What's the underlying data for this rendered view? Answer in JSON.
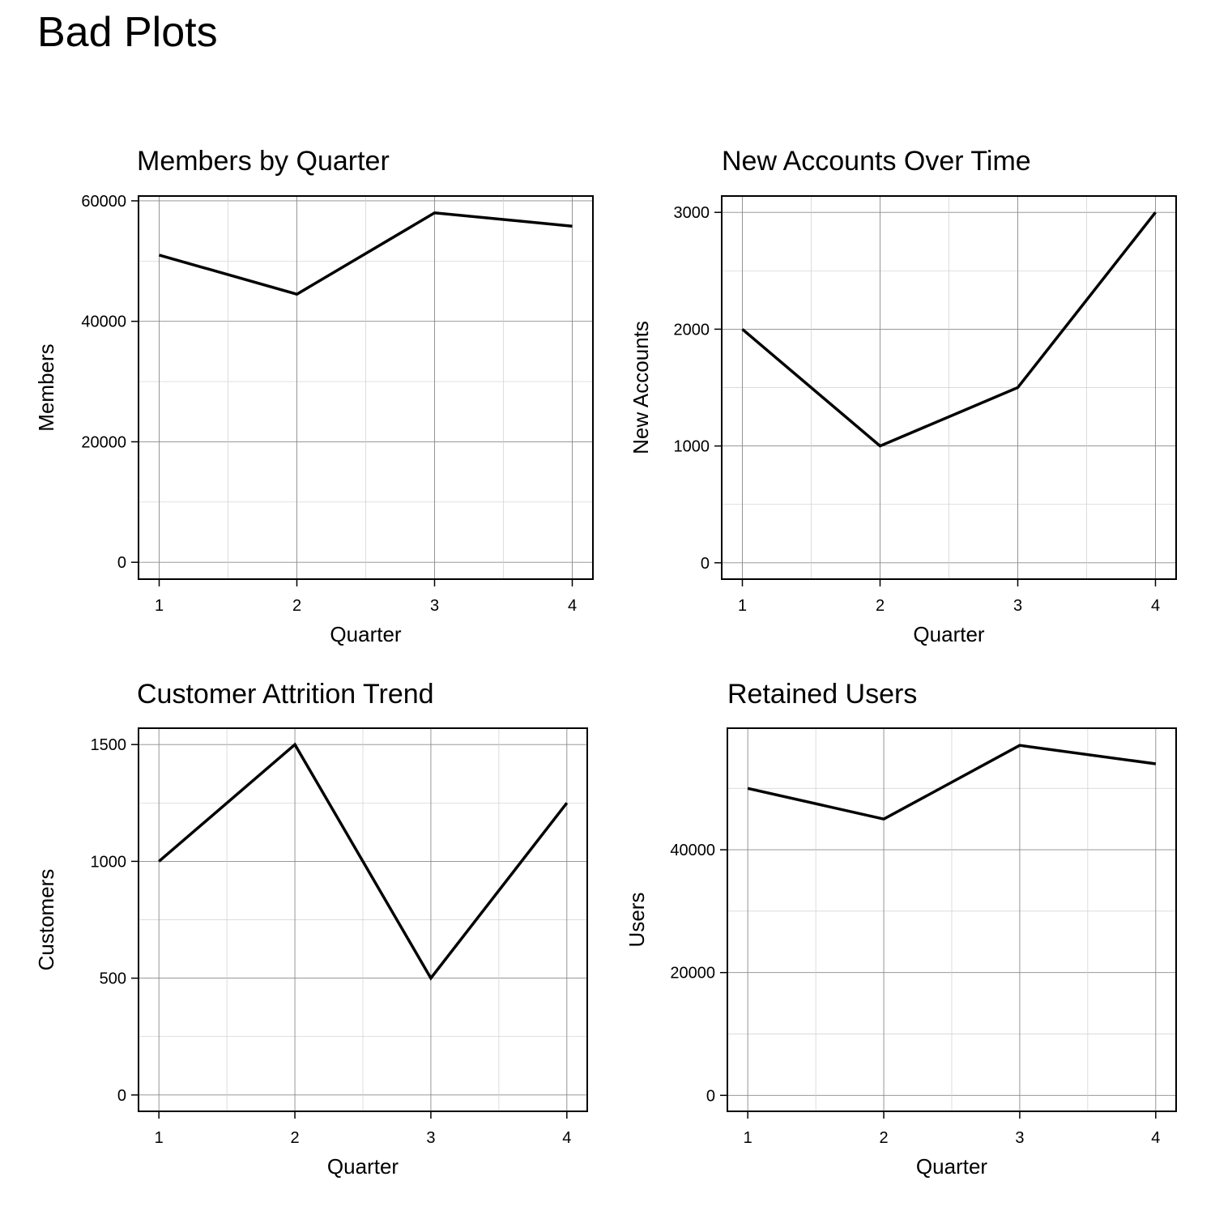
{
  "page": {
    "title": "Bad Plots"
  },
  "chart_data": [
    {
      "type": "line",
      "title": "Members by Quarter",
      "xlabel": "Quarter",
      "ylabel": "Members",
      "x": [
        1,
        2,
        3,
        4
      ],
      "series": [
        {
          "values": [
            51000,
            44500,
            58000,
            55800
          ]
        }
      ],
      "xlim": [
        0.85,
        4.15
      ],
      "ylim": [
        -2800,
        60800
      ],
      "xticks": [
        1,
        2,
        3,
        4
      ],
      "yticks": [
        0,
        20000,
        40000,
        60000
      ],
      "grid": true,
      "legend": "none"
    },
    {
      "type": "line",
      "title": "New Accounts Over Time",
      "xlabel": "Quarter",
      "ylabel": "New Accounts",
      "x": [
        1,
        2,
        3,
        4
      ],
      "series": [
        {
          "values": [
            2000,
            1000,
            1500,
            3000
          ]
        }
      ],
      "xlim": [
        0.85,
        4.15
      ],
      "ylim": [
        -140,
        3140
      ],
      "xticks": [
        1,
        2,
        3,
        4
      ],
      "yticks": [
        0,
        1000,
        2000,
        3000
      ],
      "grid": true,
      "legend": "none"
    },
    {
      "type": "line",
      "title": "Customer Attrition Trend",
      "xlabel": "Quarter",
      "ylabel": "Customers",
      "x": [
        1,
        2,
        3,
        4
      ],
      "series": [
        {
          "values": [
            1000,
            1500,
            500,
            1250
          ]
        }
      ],
      "xlim": [
        0.85,
        4.15
      ],
      "ylim": [
        -70,
        1570
      ],
      "xticks": [
        1,
        2,
        3,
        4
      ],
      "yticks": [
        0,
        500,
        1000,
        1500
      ],
      "grid": true,
      "legend": "none"
    },
    {
      "type": "line",
      "title": "Retained Users",
      "xlabel": "Quarter",
      "ylabel": "Users",
      "x": [
        1,
        2,
        3,
        4
      ],
      "series": [
        {
          "values": [
            50000,
            45000,
            57000,
            54000
          ]
        }
      ],
      "xlim": [
        0.85,
        4.15
      ],
      "ylim": [
        -2600,
        59800
      ],
      "xticks": [
        1,
        2,
        3,
        4
      ],
      "yticks": [
        0,
        20000,
        40000
      ],
      "grid": true,
      "legend": "none"
    }
  ]
}
